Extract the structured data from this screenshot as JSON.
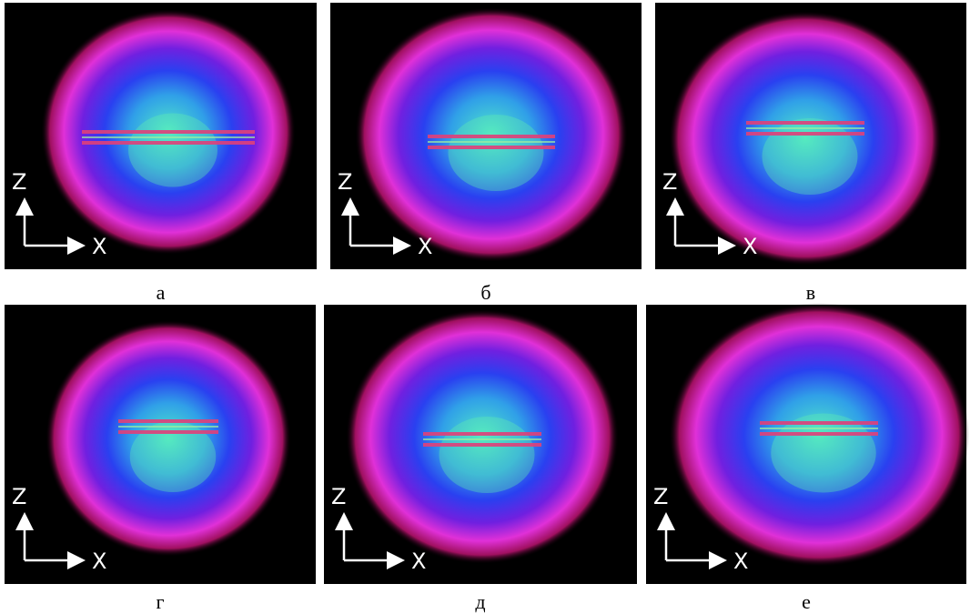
{
  "panels": [
    {
      "label": "а"
    },
    {
      "label": "б"
    },
    {
      "label": "в"
    },
    {
      "label": "г"
    },
    {
      "label": "д"
    },
    {
      "label": "е"
    }
  ],
  "axes": {
    "z": "Z",
    "x": "X"
  }
}
